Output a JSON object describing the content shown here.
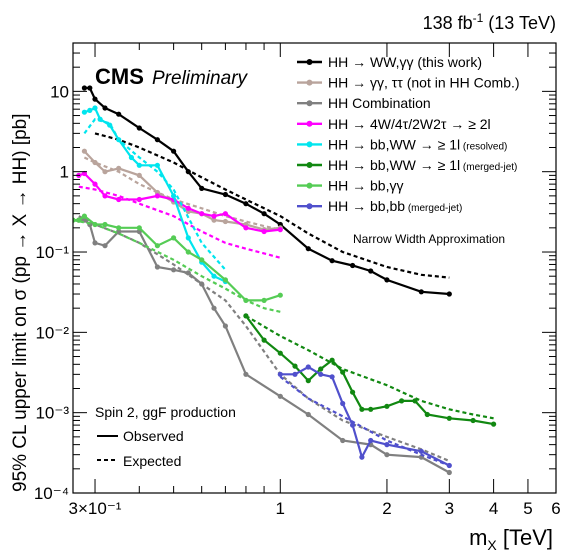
{
  "chart_data": {
    "type": "line",
    "lumi_label": "138 fb",
    "lumi_sup": "-1",
    "lumi_energy": "(13 TeV)",
    "cms_label": "CMS",
    "cms_sub": "Preliminary",
    "xlabel_main": "m",
    "xlabel_sub": "X",
    "xlabel_unit": " [TeV]",
    "ylabel": "95% CL upper limit on σ (pp → X → HH) [pb]",
    "x_scale": "log",
    "y_scale": "log",
    "xlim": [
      0.26,
      6.0
    ],
    "ylim": [
      0.0001,
      40
    ],
    "x_ticks": [
      {
        "value": 0.3,
        "text": "3×10⁻¹"
      },
      {
        "value": 1,
        "text": "1"
      },
      {
        "value": 2,
        "text": "2"
      },
      {
        "value": 3,
        "text": "3"
      },
      {
        "value": 4,
        "text": "4"
      },
      {
        "value": 5,
        "text": "5"
      },
      {
        "value": 6,
        "text": "6"
      }
    ],
    "y_ticks": [
      {
        "value": 10,
        "text": "10"
      },
      {
        "value": 1,
        "text": "1"
      },
      {
        "value": 0.1,
        "text": "10⁻¹"
      },
      {
        "value": 0.01,
        "text": "10⁻²"
      },
      {
        "value": 0.001,
        "text": "10⁻³"
      },
      {
        "value": 0.0001,
        "text": "10⁻⁴"
      }
    ],
    "annotation": "Narrow Width Approximation",
    "legend2_title": "Spin 2, ggF production",
    "legend2_observed": "Observed",
    "legend2_expected": "Expected",
    "series": [
      {
        "name": "HH → WW,γγ (this work)",
        "color": "#000000",
        "marker": true,
        "observed": {
          "x": [
            0.28,
            0.29,
            0.3,
            0.32,
            0.35,
            0.4,
            0.45,
            0.5,
            0.55,
            0.6,
            0.7,
            0.8,
            0.9,
            1.0,
            1.2,
            1.4,
            1.6,
            1.8,
            2.0,
            2.5,
            3.0
          ],
          "y": [
            11,
            11,
            8,
            6.2,
            5.2,
            3.5,
            2.5,
            1.8,
            1.0,
            0.62,
            0.52,
            0.4,
            0.3,
            0.22,
            0.11,
            0.078,
            0.068,
            0.058,
            0.045,
            0.032,
            0.03
          ]
        },
        "expected": {
          "x": [
            0.3,
            0.35,
            0.4,
            0.5,
            0.6,
            0.7,
            0.8,
            1.0,
            1.2,
            1.5,
            2.0,
            2.5,
            3.0
          ],
          "y": [
            3.0,
            2.5,
            2.0,
            1.3,
            0.85,
            0.6,
            0.45,
            0.28,
            0.17,
            0.1,
            0.065,
            0.052,
            0.048
          ]
        }
      },
      {
        "name": "HH → γγ, ττ (not in HH Comb.)",
        "color": "#b9a49c",
        "marker": true,
        "observed": {
          "x": [
            0.28,
            0.3,
            0.32,
            0.35,
            0.4,
            0.45,
            0.5,
            0.55,
            0.6,
            0.65,
            0.7,
            0.8,
            0.9,
            1.0
          ],
          "y": [
            1.8,
            1.3,
            1.0,
            1.1,
            0.9,
            0.55,
            0.42,
            0.32,
            0.3,
            0.25,
            0.24,
            0.22,
            0.19,
            0.2
          ]
        },
        "expected": {
          "x": [
            0.28,
            0.3,
            0.35,
            0.4,
            0.5,
            0.6,
            0.7,
            0.8,
            0.9,
            1.0
          ],
          "y": [
            1.5,
            1.3,
            1.0,
            0.7,
            0.45,
            0.35,
            0.28,
            0.24,
            0.21,
            0.19
          ]
        }
      },
      {
        "name": "HH Combination",
        "color": "#808080",
        "marker": true,
        "observed": {
          "x": [
            0.27,
            0.28,
            0.29,
            0.3,
            0.32,
            0.35,
            0.4,
            0.45,
            0.5,
            0.55,
            0.6,
            0.65,
            0.7,
            0.8,
            1.0,
            1.2,
            1.5,
            1.8,
            2.0,
            2.5,
            3.0
          ],
          "y": [
            0.25,
            0.25,
            0.22,
            0.13,
            0.12,
            0.18,
            0.18,
            0.065,
            0.06,
            0.055,
            0.04,
            0.02,
            0.012,
            0.003,
            0.0016,
            0.00095,
            0.00045,
            0.0004,
            0.0003,
            0.00028,
            0.00018
          ]
        },
        "expected": {
          "x": [
            0.27,
            0.3,
            0.35,
            0.4,
            0.5,
            0.6,
            0.7,
            0.8,
            1.0,
            1.2,
            1.5,
            2.0,
            2.5,
            3.0
          ],
          "y": [
            0.28,
            0.22,
            0.17,
            0.13,
            0.07,
            0.04,
            0.025,
            0.012,
            0.003,
            0.0015,
            0.0008,
            0.0005,
            0.00035,
            0.00025
          ]
        }
      },
      {
        "name": "HH → 4W/4τ/2W2τ → ≥ 2l",
        "color": "#ff00ff",
        "marker": true,
        "observed": {
          "x": [
            0.27,
            0.28,
            0.3,
            0.32,
            0.35,
            0.4,
            0.45,
            0.5,
            0.55,
            0.6,
            0.65,
            0.7,
            0.8,
            0.9,
            1.0
          ],
          "y": [
            0.9,
            0.95,
            0.7,
            0.5,
            0.45,
            0.45,
            0.5,
            0.45,
            0.35,
            0.3,
            0.28,
            0.3,
            0.2,
            0.18,
            0.19
          ]
        },
        "expected": {
          "x": [
            0.27,
            0.3,
            0.35,
            0.4,
            0.5,
            0.6,
            0.7,
            0.8,
            1.0
          ],
          "y": [
            0.65,
            0.6,
            0.5,
            0.4,
            0.28,
            0.18,
            0.13,
            0.11,
            0.085
          ]
        }
      },
      {
        "name": "HH → bb,WW → ≥ 1l",
        "name_suffix": "(resolved)",
        "color": "#00e5ee",
        "marker": true,
        "observed": {
          "x": [
            0.28,
            0.29,
            0.3,
            0.31,
            0.33,
            0.35,
            0.38,
            0.4,
            0.45,
            0.5,
            0.55,
            0.6,
            0.65,
            0.7
          ],
          "y": [
            5.5,
            5.8,
            6.2,
            4.5,
            3.8,
            2.5,
            1.5,
            1.2,
            1.2,
            0.5,
            0.15,
            0.075,
            0.05,
            0.043
          ]
        },
        "expected": {
          "x": [
            0.28,
            0.3,
            0.33,
            0.35,
            0.4,
            0.45,
            0.5,
            0.6,
            0.7
          ],
          "y": [
            3.0,
            4.5,
            4.0,
            2.5,
            1.5,
            1.0,
            0.6,
            0.13,
            0.06
          ]
        }
      },
      {
        "name": "HH → bb,WW → ≥ 1l",
        "name_suffix": "(merged-jet)",
        "color": "#118811",
        "marker": true,
        "observed": {
          "x": [
            0.8,
            0.9,
            1.0,
            1.1,
            1.2,
            1.3,
            1.4,
            1.5,
            1.6,
            1.7,
            1.8,
            2.0,
            2.2,
            2.4,
            2.6,
            3.0,
            3.5,
            4.0
          ],
          "y": [
            0.016,
            0.008,
            0.0055,
            0.0038,
            0.0025,
            0.0035,
            0.0045,
            0.0032,
            0.0018,
            0.0011,
            0.0011,
            0.0012,
            0.0014,
            0.0014,
            0.00095,
            0.00085,
            0.0008,
            0.00072
          ]
        },
        "expected": {
          "x": [
            0.8,
            1.0,
            1.2,
            1.5,
            2.0,
            2.5,
            3.0,
            3.5,
            4.0
          ],
          "y": [
            0.016,
            0.009,
            0.006,
            0.0035,
            0.0022,
            0.0014,
            0.0011,
            0.00095,
            0.00085
          ]
        }
      },
      {
        "name": "HH → bb,γγ",
        "color": "#55cc55",
        "marker": true,
        "observed": {
          "x": [
            0.26,
            0.27,
            0.28,
            0.3,
            0.32,
            0.35,
            0.4,
            0.45,
            0.5,
            0.55,
            0.6,
            0.7,
            0.8,
            0.9,
            1.0
          ],
          "y": [
            0.25,
            0.25,
            0.28,
            0.22,
            0.22,
            0.2,
            0.2,
            0.12,
            0.15,
            0.1,
            0.08,
            0.045,
            0.025,
            0.025,
            0.029
          ]
        },
        "expected": {
          "x": [
            0.26,
            0.3,
            0.35,
            0.4,
            0.5,
            0.6,
            0.7,
            0.8,
            0.9,
            1.0
          ],
          "y": [
            0.25,
            0.22,
            0.17,
            0.13,
            0.08,
            0.05,
            0.035,
            0.025,
            0.02,
            0.018
          ]
        }
      },
      {
        "name": "HH → bb,bb",
        "name_suffix": "(merged-jet)",
        "color": "#5050cc",
        "marker": true,
        "observed": {
          "x": [
            1.0,
            1.1,
            1.2,
            1.3,
            1.4,
            1.5,
            1.6,
            1.7,
            1.8,
            2.0,
            2.5,
            3.0
          ],
          "y": [
            0.003,
            0.003,
            0.0037,
            0.003,
            0.0028,
            0.0013,
            0.0007,
            0.00028,
            0.00045,
            0.0004,
            0.00033,
            0.00022
          ]
        },
        "expected": {
          "x": [
            1.0,
            1.2,
            1.5,
            2.0,
            2.5,
            3.0
          ],
          "y": [
            0.0028,
            0.0015,
            0.0009,
            0.00045,
            0.0003,
            0.00022
          ]
        }
      }
    ]
  }
}
